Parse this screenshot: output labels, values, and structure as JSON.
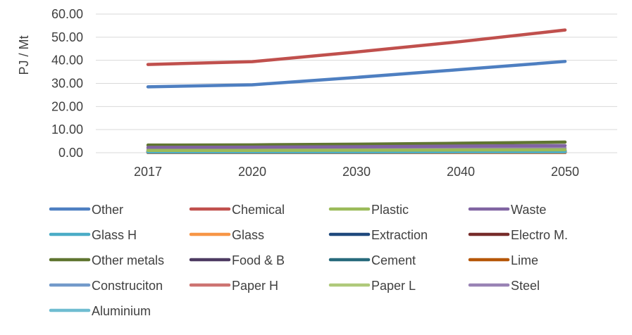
{
  "chart_data": {
    "type": "line",
    "title": "",
    "xlabel": "",
    "ylabel": "PJ / Mt",
    "ylim": [
      0,
      60
    ],
    "yticks": [
      "0.00",
      "10.00",
      "20.00",
      "30.00",
      "40.00",
      "50.00",
      "60.00"
    ],
    "categories": [
      "2017",
      "2020",
      "2030",
      "2040",
      "2050"
    ],
    "grid": "horizontal",
    "legend_position": "bottom",
    "series": [
      {
        "name": "Other",
        "color": "#4E7FC1",
        "values": [
          28.5,
          29.4,
          32.6,
          36.0,
          39.5
        ]
      },
      {
        "name": "Chemical",
        "color": "#C0504D",
        "values": [
          38.2,
          39.4,
          43.6,
          48.1,
          53.1
        ]
      },
      {
        "name": "Plastic",
        "color": "#9BBB59",
        "values": [
          1.0,
          1.0,
          1.1,
          1.2,
          1.3
        ]
      },
      {
        "name": "Waste",
        "color": "#8064A2",
        "values": [
          2.3,
          2.4,
          2.6,
          2.9,
          3.1
        ]
      },
      {
        "name": "Glass H",
        "color": "#4BACC6",
        "values": [
          0.3,
          0.3,
          0.3,
          0.4,
          0.4
        ]
      },
      {
        "name": "Glass",
        "color": "#F79646",
        "values": [
          0.2,
          0.2,
          0.2,
          0.2,
          0.2
        ]
      },
      {
        "name": "Extraction",
        "color": "#1F497D",
        "values": [
          0.4,
          0.4,
          0.4,
          0.5,
          0.5
        ]
      },
      {
        "name": "Electro M.",
        "color": "#772C2A",
        "values": [
          0.1,
          0.1,
          0.1,
          0.1,
          0.1
        ]
      },
      {
        "name": "Other metals",
        "color": "#5F7530",
        "values": [
          3.3,
          3.4,
          3.7,
          4.1,
          4.6
        ]
      },
      {
        "name": "Food & B",
        "color": "#4D3B62",
        "values": [
          0.6,
          0.6,
          0.7,
          0.7,
          0.8
        ]
      },
      {
        "name": "Cement",
        "color": "#276A7C",
        "values": [
          0.1,
          0.1,
          0.1,
          0.1,
          0.1
        ]
      },
      {
        "name": "Lime",
        "color": "#B65708",
        "values": [
          0.1,
          0.1,
          0.1,
          0.1,
          0.1
        ]
      },
      {
        "name": "Construciton",
        "color": "#729ACA",
        "values": [
          0.5,
          0.5,
          0.6,
          0.6,
          0.7
        ]
      },
      {
        "name": "Paper H",
        "color": "#CD7371",
        "values": [
          0.3,
          0.3,
          0.3,
          0.3,
          0.4
        ]
      },
      {
        "name": "Paper L",
        "color": "#AFC97A",
        "values": [
          0.2,
          0.2,
          0.2,
          0.2,
          0.2
        ]
      },
      {
        "name": "Steel",
        "color": "#9983B5",
        "values": [
          1.6,
          1.6,
          1.7,
          1.9,
          2.0
        ]
      },
      {
        "name": "Aluminium",
        "color": "#6FBDD1",
        "values": [
          0.8,
          0.8,
          0.9,
          0.9,
          1.0
        ]
      }
    ]
  }
}
